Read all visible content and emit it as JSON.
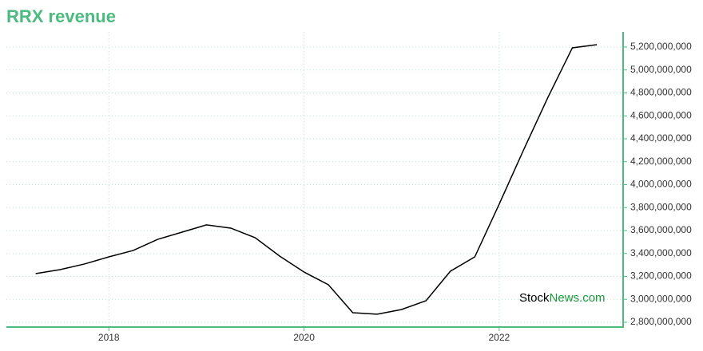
{
  "chart_data": {
    "type": "line",
    "title": "RRX revenue",
    "watermark": [
      "Stock",
      "News.com"
    ],
    "x": [
      2017.25,
      2017.5,
      2017.75,
      2018,
      2018.25,
      2018.5,
      2018.75,
      2019,
      2019.25,
      2019.5,
      2019.75,
      2020,
      2020.25,
      2020.5,
      2020.75,
      2021,
      2021.25,
      2021.5,
      2021.75,
      2022,
      2022.25,
      2022.5,
      2022.75,
      2023
    ],
    "series": [
      {
        "name": "RRX revenue",
        "color": "#000000",
        "values": [
          3224000000,
          3259000000,
          3308000000,
          3370000000,
          3426000000,
          3523000000,
          3586000000,
          3649000000,
          3621000000,
          3537000000,
          3377000000,
          3238000000,
          3127000000,
          2883000000,
          2870000000,
          2911000000,
          2988000000,
          3245000000,
          3370000000,
          3830000000,
          4303000000,
          4762000000,
          5193000000,
          5221000000
        ]
      }
    ],
    "xlim": [
      2016.95,
      2023.27
    ],
    "xticks": [
      2018,
      2020,
      2022
    ],
    "ylim": [
      2758000000,
      5332000000
    ],
    "yticks": [
      {
        "value": 2800000000,
        "label": "2,800,000,000"
      },
      {
        "value": 3000000000,
        "label": "3,000,000,000"
      },
      {
        "value": 3200000000,
        "label": "3,200,000,000"
      },
      {
        "value": 3400000000,
        "label": "3,400,000,000"
      },
      {
        "value": 3600000000,
        "label": "3,600,000,000"
      },
      {
        "value": 3800000000,
        "label": "3,800,000,000"
      },
      {
        "value": 4000000000,
        "label": "4,000,000,000"
      },
      {
        "value": 4200000000,
        "label": "4,200,000,000"
      },
      {
        "value": 4400000000,
        "label": "4,400,000,000"
      },
      {
        "value": 4600000000,
        "label": "4,600,000,000"
      },
      {
        "value": 4800000000,
        "label": "4,800,000,000"
      },
      {
        "value": 5000000000,
        "label": "5,000,000,000"
      },
      {
        "value": 5200000000,
        "label": "5,200,000,000"
      }
    ],
    "grid": true,
    "accent_color": "#4cbb7f"
  }
}
